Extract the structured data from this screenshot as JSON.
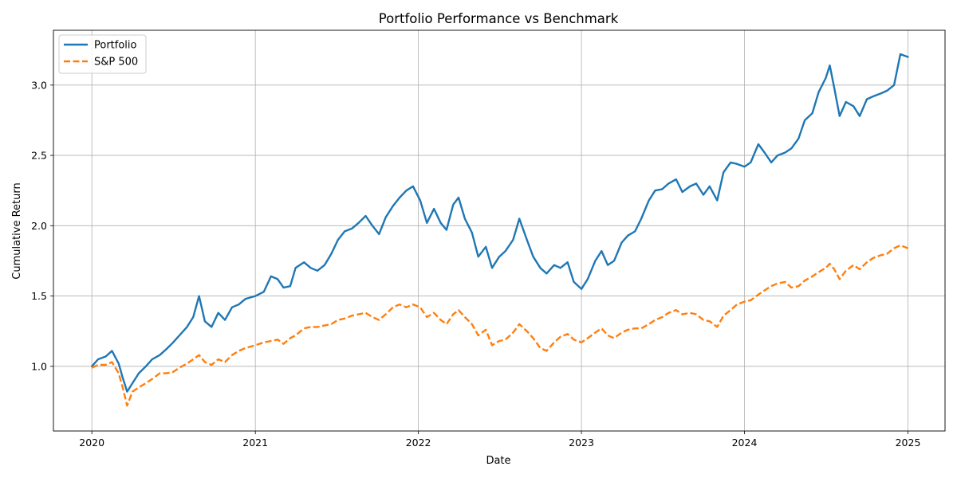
{
  "chart_data": {
    "type": "line",
    "title": "Portfolio Performance vs Benchmark",
    "xlabel": "Date",
    "ylabel": "Cumulative Return",
    "xlim": [
      "2019-10-07",
      "2025-03-25"
    ],
    "ylim": [
      0.54,
      3.39
    ],
    "x_ticks": [
      "2020-01-01",
      "2021-01-01",
      "2022-01-01",
      "2023-01-01",
      "2024-01-01",
      "2025-01-01"
    ],
    "x_tick_labels": [
      "2020",
      "2021",
      "2022",
      "2023",
      "2024",
      "2025"
    ],
    "y_ticks": [
      1.0,
      1.5,
      2.0,
      2.5,
      3.0
    ],
    "y_tick_labels": [
      "1.0",
      "1.5",
      "2.0",
      "2.5",
      "3.0"
    ],
    "grid": true,
    "legend_position": "top-left",
    "colors": {
      "portfolio": "#1f77b4",
      "benchmark": "#ff7f0e"
    },
    "series": [
      {
        "name": "Portfolio",
        "style": "solid",
        "points": [
          [
            "2020-01-01",
            1.0
          ],
          [
            "2020-01-15",
            1.05
          ],
          [
            "2020-02-01",
            1.07
          ],
          [
            "2020-02-15",
            1.11
          ],
          [
            "2020-03-01",
            1.02
          ],
          [
            "2020-03-10",
            0.92
          ],
          [
            "2020-03-20",
            0.82
          ],
          [
            "2020-04-01",
            0.88
          ],
          [
            "2020-04-15",
            0.95
          ],
          [
            "2020-05-01",
            1.0
          ],
          [
            "2020-05-15",
            1.05
          ],
          [
            "2020-06-01",
            1.08
          ],
          [
            "2020-06-15",
            1.12
          ],
          [
            "2020-07-01",
            1.17
          ],
          [
            "2020-07-15",
            1.22
          ],
          [
            "2020-08-01",
            1.28
          ],
          [
            "2020-08-15",
            1.35
          ],
          [
            "2020-08-28",
            1.5
          ],
          [
            "2020-09-10",
            1.32
          ],
          [
            "2020-09-25",
            1.28
          ],
          [
            "2020-10-10",
            1.38
          ],
          [
            "2020-10-25",
            1.33
          ],
          [
            "2020-11-10",
            1.42
          ],
          [
            "2020-11-25",
            1.44
          ],
          [
            "2020-12-10",
            1.48
          ],
          [
            "2021-01-01",
            1.5
          ],
          [
            "2021-01-20",
            1.53
          ],
          [
            "2021-02-05",
            1.64
          ],
          [
            "2021-02-20",
            1.62
          ],
          [
            "2021-03-05",
            1.56
          ],
          [
            "2021-03-20",
            1.57
          ],
          [
            "2021-04-01",
            1.7
          ],
          [
            "2021-04-20",
            1.74
          ],
          [
            "2021-05-05",
            1.7
          ],
          [
            "2021-05-20",
            1.68
          ],
          [
            "2021-06-05",
            1.72
          ],
          [
            "2021-06-20",
            1.8
          ],
          [
            "2021-07-05",
            1.9
          ],
          [
            "2021-07-20",
            1.96
          ],
          [
            "2021-08-05",
            1.98
          ],
          [
            "2021-08-20",
            2.02
          ],
          [
            "2021-09-05",
            2.07
          ],
          [
            "2021-09-20",
            2.0
          ],
          [
            "2021-10-05",
            1.94
          ],
          [
            "2021-10-20",
            2.06
          ],
          [
            "2021-11-05",
            2.14
          ],
          [
            "2021-11-20",
            2.2
          ],
          [
            "2021-12-05",
            2.25
          ],
          [
            "2021-12-20",
            2.28
          ],
          [
            "2022-01-05",
            2.18
          ],
          [
            "2022-01-20",
            2.02
          ],
          [
            "2022-02-05",
            2.12
          ],
          [
            "2022-02-20",
            2.02
          ],
          [
            "2022-03-05",
            1.97
          ],
          [
            "2022-03-20",
            2.15
          ],
          [
            "2022-04-01",
            2.2
          ],
          [
            "2022-04-15",
            2.05
          ],
          [
            "2022-05-01",
            1.95
          ],
          [
            "2022-05-15",
            1.78
          ],
          [
            "2022-06-01",
            1.85
          ],
          [
            "2022-06-15",
            1.7
          ],
          [
            "2022-07-01",
            1.78
          ],
          [
            "2022-07-15",
            1.82
          ],
          [
            "2022-08-01",
            1.9
          ],
          [
            "2022-08-15",
            2.05
          ],
          [
            "2022-09-01",
            1.9
          ],
          [
            "2022-09-15",
            1.78
          ],
          [
            "2022-10-01",
            1.7
          ],
          [
            "2022-10-15",
            1.66
          ],
          [
            "2022-11-01",
            1.72
          ],
          [
            "2022-11-15",
            1.7
          ],
          [
            "2022-12-01",
            1.74
          ],
          [
            "2022-12-15",
            1.6
          ],
          [
            "2023-01-01",
            1.55
          ],
          [
            "2023-01-15",
            1.62
          ],
          [
            "2023-02-01",
            1.75
          ],
          [
            "2023-02-15",
            1.82
          ],
          [
            "2023-03-01",
            1.72
          ],
          [
            "2023-03-15",
            1.75
          ],
          [
            "2023-04-01",
            1.88
          ],
          [
            "2023-04-15",
            1.93
          ],
          [
            "2023-05-01",
            1.96
          ],
          [
            "2023-05-15",
            2.05
          ],
          [
            "2023-06-01",
            2.18
          ],
          [
            "2023-06-15",
            2.25
          ],
          [
            "2023-07-01",
            2.26
          ],
          [
            "2023-07-15",
            2.3
          ],
          [
            "2023-08-01",
            2.33
          ],
          [
            "2023-08-15",
            2.24
          ],
          [
            "2023-09-01",
            2.28
          ],
          [
            "2023-09-15",
            2.3
          ],
          [
            "2023-10-01",
            2.22
          ],
          [
            "2023-10-15",
            2.28
          ],
          [
            "2023-11-01",
            2.18
          ],
          [
            "2023-11-15",
            2.38
          ],
          [
            "2023-12-01",
            2.45
          ],
          [
            "2023-12-15",
            2.44
          ],
          [
            "2024-01-01",
            2.42
          ],
          [
            "2024-01-15",
            2.45
          ],
          [
            "2024-02-01",
            2.58
          ],
          [
            "2024-02-15",
            2.52
          ],
          [
            "2024-03-01",
            2.45
          ],
          [
            "2024-03-15",
            2.5
          ],
          [
            "2024-04-01",
            2.52
          ],
          [
            "2024-04-15",
            2.55
          ],
          [
            "2024-05-01",
            2.62
          ],
          [
            "2024-05-15",
            2.75
          ],
          [
            "2024-06-01",
            2.8
          ],
          [
            "2024-06-15",
            2.95
          ],
          [
            "2024-07-01",
            3.05
          ],
          [
            "2024-07-10",
            3.14
          ],
          [
            "2024-07-20",
            2.98
          ],
          [
            "2024-08-01",
            2.78
          ],
          [
            "2024-08-15",
            2.88
          ],
          [
            "2024-09-01",
            2.85
          ],
          [
            "2024-09-15",
            2.78
          ],
          [
            "2024-10-01",
            2.9
          ],
          [
            "2024-10-15",
            2.92
          ],
          [
            "2024-11-01",
            2.94
          ],
          [
            "2024-11-15",
            2.96
          ],
          [
            "2024-12-01",
            3.0
          ],
          [
            "2024-12-15",
            3.22
          ],
          [
            "2025-01-01",
            3.2
          ]
        ]
      },
      {
        "name": "S&P 500",
        "style": "dashed",
        "points": [
          [
            "2020-01-01",
            0.99
          ],
          [
            "2020-01-15",
            1.01
          ],
          [
            "2020-02-01",
            1.01
          ],
          [
            "2020-02-15",
            1.03
          ],
          [
            "2020-03-01",
            0.95
          ],
          [
            "2020-03-10",
            0.85
          ],
          [
            "2020-03-20",
            0.72
          ],
          [
            "2020-04-01",
            0.82
          ],
          [
            "2020-04-15",
            0.85
          ],
          [
            "2020-05-01",
            0.88
          ],
          [
            "2020-05-15",
            0.91
          ],
          [
            "2020-06-01",
            0.95
          ],
          [
            "2020-06-15",
            0.95
          ],
          [
            "2020-07-01",
            0.96
          ],
          [
            "2020-07-15",
            0.99
          ],
          [
            "2020-08-01",
            1.02
          ],
          [
            "2020-08-15",
            1.05
          ],
          [
            "2020-08-28",
            1.08
          ],
          [
            "2020-09-10",
            1.03
          ],
          [
            "2020-09-25",
            1.01
          ],
          [
            "2020-10-10",
            1.05
          ],
          [
            "2020-10-25",
            1.03
          ],
          [
            "2020-11-10",
            1.08
          ],
          [
            "2020-11-25",
            1.11
          ],
          [
            "2020-12-10",
            1.13
          ],
          [
            "2021-01-01",
            1.15
          ],
          [
            "2021-01-20",
            1.17
          ],
          [
            "2021-02-05",
            1.18
          ],
          [
            "2021-02-20",
            1.19
          ],
          [
            "2021-03-05",
            1.16
          ],
          [
            "2021-03-20",
            1.2
          ],
          [
            "2021-04-01",
            1.22
          ],
          [
            "2021-04-20",
            1.27
          ],
          [
            "2021-05-05",
            1.28
          ],
          [
            "2021-05-20",
            1.28
          ],
          [
            "2021-06-05",
            1.29
          ],
          [
            "2021-06-20",
            1.3
          ],
          [
            "2021-07-05",
            1.33
          ],
          [
            "2021-07-20",
            1.34
          ],
          [
            "2021-08-05",
            1.36
          ],
          [
            "2021-08-20",
            1.37
          ],
          [
            "2021-09-05",
            1.38
          ],
          [
            "2021-09-20",
            1.35
          ],
          [
            "2021-10-05",
            1.33
          ],
          [
            "2021-10-20",
            1.37
          ],
          [
            "2021-11-05",
            1.42
          ],
          [
            "2021-11-20",
            1.44
          ],
          [
            "2021-12-05",
            1.42
          ],
          [
            "2021-12-20",
            1.44
          ],
          [
            "2022-01-05",
            1.42
          ],
          [
            "2022-01-20",
            1.35
          ],
          [
            "2022-02-05",
            1.38
          ],
          [
            "2022-02-20",
            1.33
          ],
          [
            "2022-03-05",
            1.3
          ],
          [
            "2022-03-20",
            1.37
          ],
          [
            "2022-04-01",
            1.4
          ],
          [
            "2022-04-15",
            1.35
          ],
          [
            "2022-05-01",
            1.3
          ],
          [
            "2022-05-15",
            1.22
          ],
          [
            "2022-06-01",
            1.26
          ],
          [
            "2022-06-15",
            1.15
          ],
          [
            "2022-07-01",
            1.18
          ],
          [
            "2022-07-15",
            1.19
          ],
          [
            "2022-08-01",
            1.24
          ],
          [
            "2022-08-15",
            1.3
          ],
          [
            "2022-09-01",
            1.25
          ],
          [
            "2022-09-15",
            1.2
          ],
          [
            "2022-10-01",
            1.13
          ],
          [
            "2022-10-15",
            1.11
          ],
          [
            "2022-11-01",
            1.17
          ],
          [
            "2022-11-15",
            1.21
          ],
          [
            "2022-12-01",
            1.23
          ],
          [
            "2022-12-15",
            1.19
          ],
          [
            "2023-01-01",
            1.17
          ],
          [
            "2023-01-15",
            1.2
          ],
          [
            "2023-02-01",
            1.24
          ],
          [
            "2023-02-15",
            1.27
          ],
          [
            "2023-03-01",
            1.22
          ],
          [
            "2023-03-15",
            1.2
          ],
          [
            "2023-04-01",
            1.24
          ],
          [
            "2023-04-15",
            1.26
          ],
          [
            "2023-05-01",
            1.27
          ],
          [
            "2023-05-15",
            1.27
          ],
          [
            "2023-06-01",
            1.3
          ],
          [
            "2023-06-15",
            1.33
          ],
          [
            "2023-07-01",
            1.35
          ],
          [
            "2023-07-15",
            1.38
          ],
          [
            "2023-08-01",
            1.4
          ],
          [
            "2023-08-15",
            1.37
          ],
          [
            "2023-09-01",
            1.38
          ],
          [
            "2023-09-15",
            1.37
          ],
          [
            "2023-10-01",
            1.33
          ],
          [
            "2023-10-15",
            1.32
          ],
          [
            "2023-11-01",
            1.28
          ],
          [
            "2023-11-15",
            1.36
          ],
          [
            "2023-12-01",
            1.4
          ],
          [
            "2023-12-15",
            1.44
          ],
          [
            "2024-01-01",
            1.46
          ],
          [
            "2024-01-15",
            1.47
          ],
          [
            "2024-02-01",
            1.51
          ],
          [
            "2024-02-15",
            1.54
          ],
          [
            "2024-03-01",
            1.57
          ],
          [
            "2024-03-15",
            1.59
          ],
          [
            "2024-04-01",
            1.6
          ],
          [
            "2024-04-15",
            1.56
          ],
          [
            "2024-05-01",
            1.57
          ],
          [
            "2024-05-15",
            1.61
          ],
          [
            "2024-06-01",
            1.64
          ],
          [
            "2024-06-15",
            1.67
          ],
          [
            "2024-07-01",
            1.7
          ],
          [
            "2024-07-10",
            1.73
          ],
          [
            "2024-07-20",
            1.69
          ],
          [
            "2024-08-01",
            1.62
          ],
          [
            "2024-08-15",
            1.68
          ],
          [
            "2024-09-01",
            1.72
          ],
          [
            "2024-09-15",
            1.69
          ],
          [
            "2024-10-01",
            1.74
          ],
          [
            "2024-10-15",
            1.77
          ],
          [
            "2024-11-01",
            1.79
          ],
          [
            "2024-11-15",
            1.8
          ],
          [
            "2024-12-01",
            1.84
          ],
          [
            "2024-12-15",
            1.86
          ],
          [
            "2025-01-01",
            1.84
          ]
        ]
      }
    ]
  }
}
